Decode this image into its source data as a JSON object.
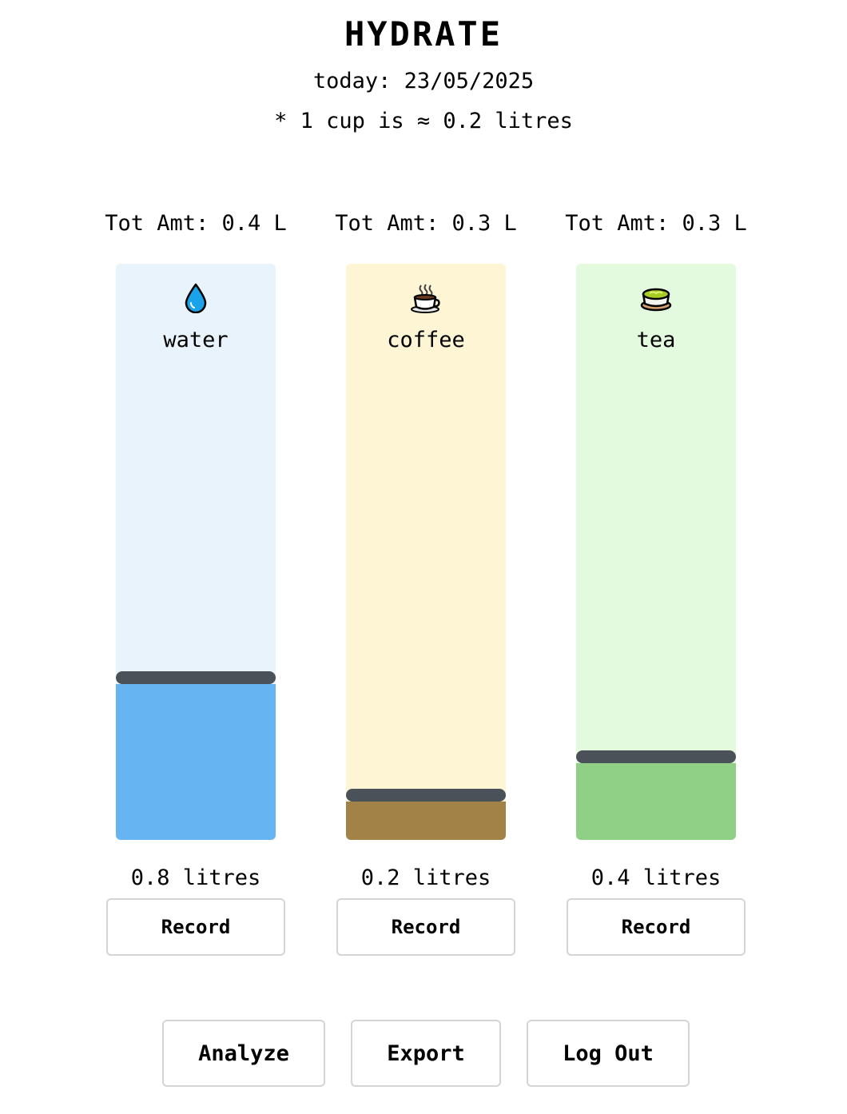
{
  "app": {
    "title": "HYDRATE",
    "date_line": "today: 23/05/2025",
    "cup_note": "* 1 cup is ≈ 0.2 litres"
  },
  "drinks": [
    {
      "name": "water",
      "icon": "water-drop-icon",
      "total_label": "Tot Amt: 0.4 L",
      "amount_label": "0.8 litres",
      "level": 0.27,
      "bg_color": "#e8f3fc",
      "fill_color": "#67b4f3",
      "record_label": "Record"
    },
    {
      "name": "coffee",
      "icon": "coffee-cup-icon",
      "total_label": "Tot Amt: 0.3 L",
      "amount_label": "0.2 litres",
      "level": 0.067,
      "bg_color": "#fdf5d3",
      "fill_color": "#a38247",
      "record_label": "Record"
    },
    {
      "name": "tea",
      "icon": "green-tea-icon",
      "total_label": "Tot Amt: 0.3 L",
      "amount_label": "0.4 litres",
      "level": 0.133,
      "bg_color": "#e3fadf",
      "fill_color": "#8fd086",
      "record_label": "Record"
    }
  ],
  "actions": {
    "analyze": "Analyze",
    "export": "Export",
    "logout": "Log Out"
  }
}
